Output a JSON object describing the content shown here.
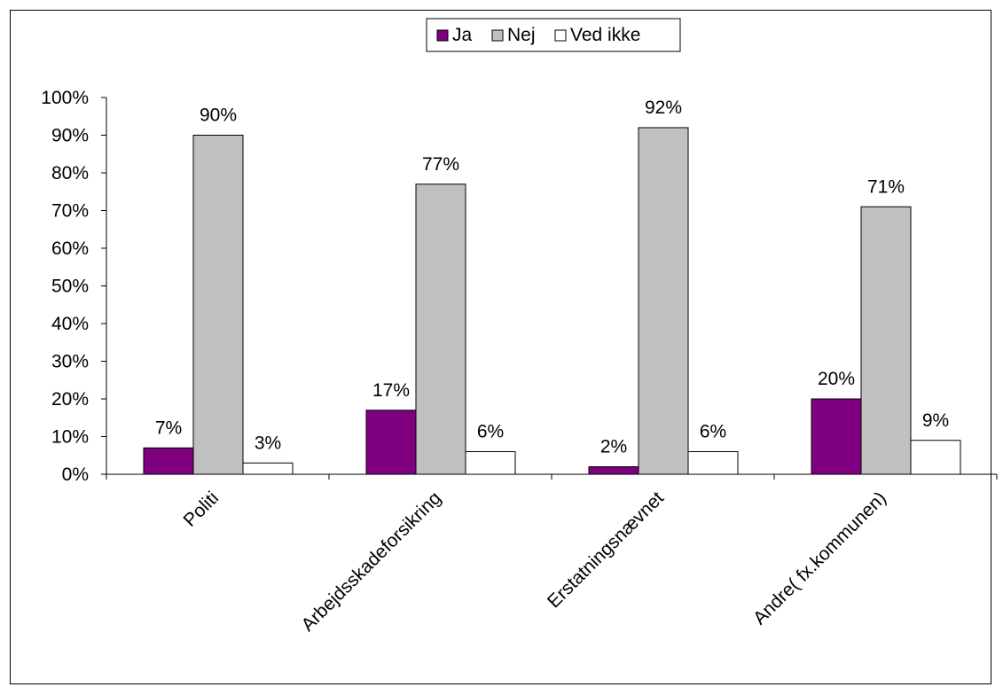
{
  "chart_data": {
    "type": "bar",
    "categories": [
      "Politi",
      "Arbejdsskadeforsikring",
      "Erstatningsnævnet",
      "Andre( fx.kommunen)"
    ],
    "series": [
      {
        "name": "Ja",
        "values": [
          7,
          17,
          2,
          20
        ],
        "color": "#7F007F",
        "labels": [
          "7%",
          "17%",
          "2%",
          "20%"
        ]
      },
      {
        "name": "Nej",
        "values": [
          90,
          77,
          92,
          71
        ],
        "color": "#C0C0C0",
        "labels": [
          "90%",
          "77%",
          "92%",
          "71%"
        ]
      },
      {
        "name": "Ved ikke",
        "values": [
          3,
          6,
          6,
          9
        ],
        "color": "#FFFFFF",
        "labels": [
          "3%",
          "6%",
          "6%",
          "9%"
        ]
      }
    ],
    "y_ticks": [
      "0%",
      "10%",
      "20%",
      "30%",
      "40%",
      "50%",
      "60%",
      "70%",
      "80%",
      "90%",
      "100%"
    ],
    "ylim": [
      0,
      100
    ],
    "grid": false,
    "legend_position": "top-center"
  }
}
